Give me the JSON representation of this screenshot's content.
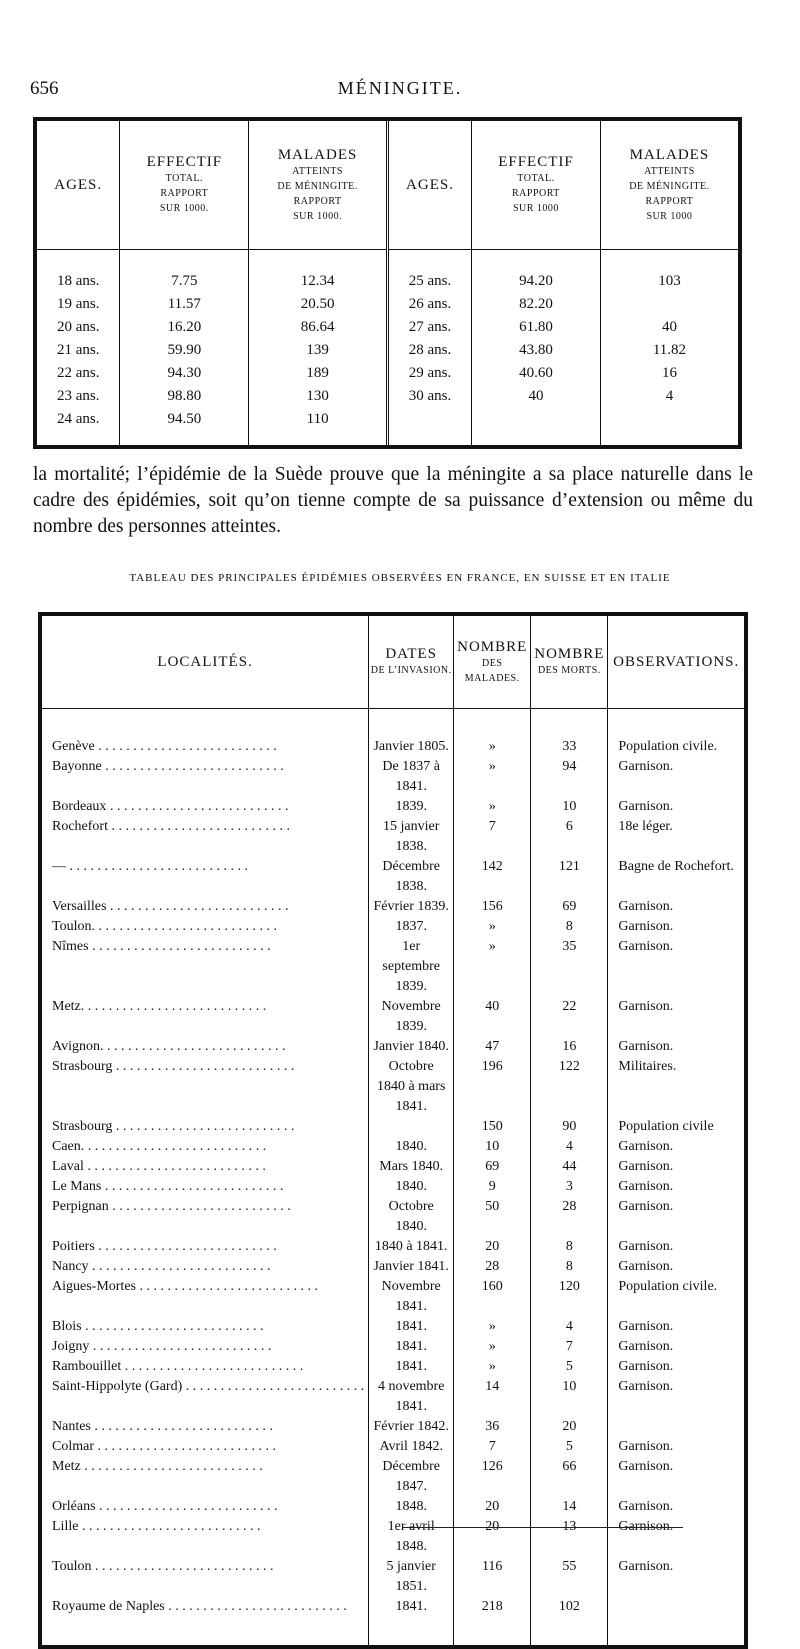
{
  "header": {
    "page_number": "656",
    "running_title": "MÉNINGITE."
  },
  "table1": {
    "left_columns": [
      [
        "AGES."
      ],
      [
        "EFFECTIF",
        "TOTAL.",
        "RAPPORT",
        "SUR 1000."
      ],
      [
        "MALADES",
        "ATTEINTS",
        "DE MÉNINGITE.",
        "RAPPORT",
        "SUR 1000."
      ]
    ],
    "right_columns": [
      [
        "AGES."
      ],
      [
        "EFFECTIF",
        "TOTAL.",
        "RAPPORT",
        "SUR 1000"
      ],
      [
        "MALADES",
        "ATTEINTS",
        "DE MÉNINGITE.",
        "RAPPORT",
        "SUR 1000"
      ]
    ],
    "left_rows": [
      [
        "18 ans.",
        "7.75",
        "12.34"
      ],
      [
        "19 ans.",
        "11.57",
        "20.50"
      ],
      [
        "20 ans.",
        "16.20",
        "86.64"
      ],
      [
        "21 ans.",
        "59.90",
        "139"
      ],
      [
        "22 ans.",
        "94.30",
        "189"
      ],
      [
        "23 ans.",
        "98.80",
        "130"
      ],
      [
        "24 ans.",
        "94.50",
        "110"
      ]
    ],
    "right_rows": [
      [
        "25 ans.",
        "94.20",
        "103"
      ],
      [
        "26 ans.",
        "82.20",
        null
      ],
      [
        "27 ans.",
        "61.80",
        "40"
      ],
      [
        "28 ans.",
        "43.80",
        "11.82"
      ],
      [
        "29 ans.",
        "40.60",
        "16"
      ],
      [
        "30 ans.",
        "40",
        "4"
      ]
    ]
  },
  "paragraph": "la mortalité; l’épidémie de la Suède prouve que la méningite a sa place naturelle dans le cadre des épidémies, soit qu’on tienne compte de sa puissance d’extension ou même du nombre des personnes atteintes.",
  "table2": {
    "caption": "TABLEAU DES PRINCIPALES ÉPIDÉMIES OBSERVÉES EN FRANCE, EN SUISSE ET EN ITALIE",
    "columns": [
      [
        "LOCALITÉS."
      ],
      [
        "DATES",
        "DE L’INVASION."
      ],
      [
        "NOMBRE",
        "DES MALADES."
      ],
      [
        "NOMBRE",
        "DES MORTS."
      ],
      [
        "OBSERVATIONS."
      ]
    ],
    "rows": [
      [
        "Genève",
        "Janvier 1805.",
        "»",
        "33",
        "Population civile."
      ],
      [
        "Bayonne",
        "De 1837 à 1841.",
        "»",
        "94",
        "Garnison."
      ],
      [
        "Bordeaux",
        "1839.",
        "»",
        "10",
        "Garnison."
      ],
      [
        "Rochefort",
        "15 janvier 1838.",
        "7",
        "6",
        "18e léger."
      ],
      [
        "—",
        "Décembre 1838.",
        "142",
        "121",
        "Bagne de Rochefort."
      ],
      [
        "Versailles",
        "Février 1839.",
        "156",
        "69",
        "Garnison."
      ],
      [
        "Toulon.",
        "1837.",
        "»",
        "8",
        "Garnison."
      ],
      [
        "Nîmes",
        "1er septembre 1839.",
        "»",
        "35",
        "Garnison."
      ],
      [
        "Metz.",
        "Novembre 1839.",
        "40",
        "22",
        "Garnison."
      ],
      [
        "Avignon.",
        "Janvier 1840.",
        "47",
        "16",
        "Garnison."
      ],
      [
        "Strasbourg",
        "Octobre 1840 à mars 1841.",
        "196",
        "122",
        "Militaires."
      ],
      [
        "Strasbourg",
        null,
        "150",
        "90",
        "Population civile"
      ],
      [
        "Caen.",
        "1840.",
        "10",
        "4",
        "Garnison."
      ],
      [
        "Laval",
        "Mars 1840.",
        "69",
        "44",
        "Garnison."
      ],
      [
        "Le Mans",
        "1840.",
        "9",
        "3",
        "Garnison."
      ],
      [
        "Perpignan",
        "Octobre 1840.",
        "50",
        "28",
        "Garnison."
      ],
      [
        "Poitiers",
        "1840 à 1841.",
        "20",
        "8",
        "Garnison."
      ],
      [
        "Nancy",
        "Janvier 1841.",
        "28",
        "8",
        "Garnison."
      ],
      [
        "Aigues-Mortes",
        "Novembre 1841.",
        "160",
        "120",
        "Population civile."
      ],
      [
        "Blois",
        "1841.",
        "»",
        "4",
        "Garnison."
      ],
      [
        "Joigny",
        "1841.",
        "»",
        "7",
        "Garnison."
      ],
      [
        "Rambouillet",
        "1841.",
        "»",
        "5",
        "Garnison."
      ],
      [
        "Saint-Hippolyte (Gard)",
        "4 novembre 1841.",
        "14",
        "10",
        "Garnison."
      ],
      [
        "Nantes",
        "Février 1842.",
        "36",
        "20",
        null
      ],
      [
        "Colmar",
        "Avril 1842.",
        "7",
        "5",
        "Garnison."
      ],
      [
        "Metz",
        "Décembre 1847.",
        "126",
        "66",
        "Garnison."
      ],
      [
        "Orléans",
        "1848.",
        "20",
        "14",
        "Garnison."
      ],
      [
        "Lille",
        "1er avril 1848.",
        "20",
        "13",
        "Garnison."
      ],
      [
        "Toulon",
        "5 janvier 1851.",
        "116",
        "55",
        "Garnison."
      ],
      [
        "Royaume de Naples",
        "1841.",
        "218",
        "102",
        null
      ]
    ]
  }
}
